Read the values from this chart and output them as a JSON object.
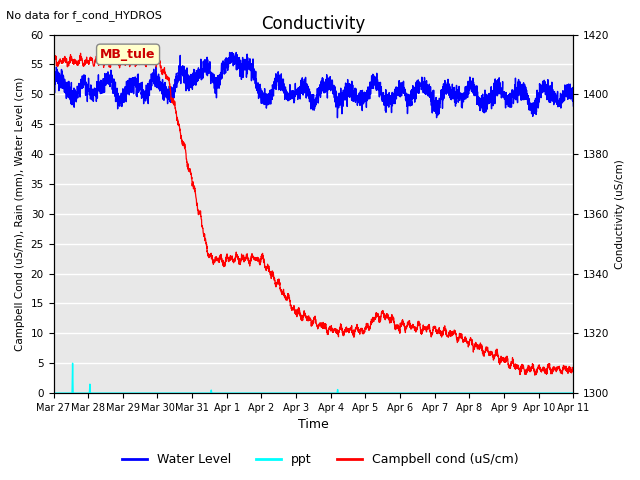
{
  "title": "Conductivity",
  "top_left_text": "No data for f_cond_HYDROS",
  "ylabel_left": "Campbell Cond (uS/m), Rain (mm), Water Level (cm)",
  "ylabel_right": "Conductivity (uS/cm)",
  "xlabel": "Time",
  "ylim_left": [
    0,
    60
  ],
  "ylim_right": [
    1300,
    1420
  ],
  "background_color": "#e8e8e8",
  "legend_labels": [
    "Water Level",
    "ppt",
    "Campbell cond (uS/cm)"
  ],
  "annotation_box": "MB_tule",
  "annotation_box_color": "#ffffcc",
  "annotation_text_color": "#cc0000",
  "x_tick_labels": [
    "Mar 27",
    "Mar 28",
    "Mar 29",
    "Mar 30",
    "Mar 31",
    "Apr 1",
    "Apr 2",
    "Apr 3",
    "Apr 4",
    "Apr 5",
    "Apr 6",
    "Apr 7",
    "Apr 8",
    "Apr 9",
    "Apr 10",
    "Apr 11"
  ],
  "x_tick_positions": [
    0,
    1,
    2,
    3,
    4,
    5,
    6,
    7,
    8,
    9,
    10,
    11,
    12,
    13,
    14,
    15
  ],
  "yticks_left": [
    0,
    5,
    10,
    15,
    20,
    25,
    30,
    35,
    40,
    45,
    50,
    55,
    60
  ],
  "yticks_right": [
    1300,
    1320,
    1340,
    1360,
    1380,
    1400,
    1420
  ],
  "figsize": [
    6.4,
    4.8
  ],
  "dpi": 100
}
